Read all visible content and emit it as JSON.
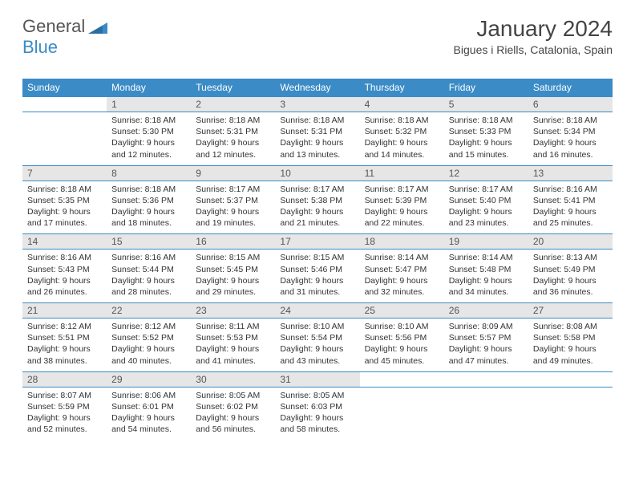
{
  "logo": {
    "text1": "General",
    "text2": "Blue"
  },
  "title": "January 2024",
  "subtitle": "Bigues i Riells, Catalonia, Spain",
  "colors": {
    "header_bg": "#3b8bc6",
    "header_fg": "#ffffff",
    "daynum_bg": "#e6e6e6",
    "rule": "#3b8bc6",
    "text": "#333333"
  },
  "weekdays": [
    "Sunday",
    "Monday",
    "Tuesday",
    "Wednesday",
    "Thursday",
    "Friday",
    "Saturday"
  ],
  "layout": {
    "rows": 5,
    "cols": 7,
    "start_col": 1,
    "last_day": 31
  },
  "days": {
    "1": {
      "sunrise": "8:18 AM",
      "sunset": "5:30 PM",
      "daylight": "9 hours and 12 minutes."
    },
    "2": {
      "sunrise": "8:18 AM",
      "sunset": "5:31 PM",
      "daylight": "9 hours and 12 minutes."
    },
    "3": {
      "sunrise": "8:18 AM",
      "sunset": "5:31 PM",
      "daylight": "9 hours and 13 minutes."
    },
    "4": {
      "sunrise": "8:18 AM",
      "sunset": "5:32 PM",
      "daylight": "9 hours and 14 minutes."
    },
    "5": {
      "sunrise": "8:18 AM",
      "sunset": "5:33 PM",
      "daylight": "9 hours and 15 minutes."
    },
    "6": {
      "sunrise": "8:18 AM",
      "sunset": "5:34 PM",
      "daylight": "9 hours and 16 minutes."
    },
    "7": {
      "sunrise": "8:18 AM",
      "sunset": "5:35 PM",
      "daylight": "9 hours and 17 minutes."
    },
    "8": {
      "sunrise": "8:18 AM",
      "sunset": "5:36 PM",
      "daylight": "9 hours and 18 minutes."
    },
    "9": {
      "sunrise": "8:17 AM",
      "sunset": "5:37 PM",
      "daylight": "9 hours and 19 minutes."
    },
    "10": {
      "sunrise": "8:17 AM",
      "sunset": "5:38 PM",
      "daylight": "9 hours and 21 minutes."
    },
    "11": {
      "sunrise": "8:17 AM",
      "sunset": "5:39 PM",
      "daylight": "9 hours and 22 minutes."
    },
    "12": {
      "sunrise": "8:17 AM",
      "sunset": "5:40 PM",
      "daylight": "9 hours and 23 minutes."
    },
    "13": {
      "sunrise": "8:16 AM",
      "sunset": "5:41 PM",
      "daylight": "9 hours and 25 minutes."
    },
    "14": {
      "sunrise": "8:16 AM",
      "sunset": "5:43 PM",
      "daylight": "9 hours and 26 minutes."
    },
    "15": {
      "sunrise": "8:16 AM",
      "sunset": "5:44 PM",
      "daylight": "9 hours and 28 minutes."
    },
    "16": {
      "sunrise": "8:15 AM",
      "sunset": "5:45 PM",
      "daylight": "9 hours and 29 minutes."
    },
    "17": {
      "sunrise": "8:15 AM",
      "sunset": "5:46 PM",
      "daylight": "9 hours and 31 minutes."
    },
    "18": {
      "sunrise": "8:14 AM",
      "sunset": "5:47 PM",
      "daylight": "9 hours and 32 minutes."
    },
    "19": {
      "sunrise": "8:14 AM",
      "sunset": "5:48 PM",
      "daylight": "9 hours and 34 minutes."
    },
    "20": {
      "sunrise": "8:13 AM",
      "sunset": "5:49 PM",
      "daylight": "9 hours and 36 minutes."
    },
    "21": {
      "sunrise": "8:12 AM",
      "sunset": "5:51 PM",
      "daylight": "9 hours and 38 minutes."
    },
    "22": {
      "sunrise": "8:12 AM",
      "sunset": "5:52 PM",
      "daylight": "9 hours and 40 minutes."
    },
    "23": {
      "sunrise": "8:11 AM",
      "sunset": "5:53 PM",
      "daylight": "9 hours and 41 minutes."
    },
    "24": {
      "sunrise": "8:10 AM",
      "sunset": "5:54 PM",
      "daylight": "9 hours and 43 minutes."
    },
    "25": {
      "sunrise": "8:10 AM",
      "sunset": "5:56 PM",
      "daylight": "9 hours and 45 minutes."
    },
    "26": {
      "sunrise": "8:09 AM",
      "sunset": "5:57 PM",
      "daylight": "9 hours and 47 minutes."
    },
    "27": {
      "sunrise": "8:08 AM",
      "sunset": "5:58 PM",
      "daylight": "9 hours and 49 minutes."
    },
    "28": {
      "sunrise": "8:07 AM",
      "sunset": "5:59 PM",
      "daylight": "9 hours and 52 minutes."
    },
    "29": {
      "sunrise": "8:06 AM",
      "sunset": "6:01 PM",
      "daylight": "9 hours and 54 minutes."
    },
    "30": {
      "sunrise": "8:05 AM",
      "sunset": "6:02 PM",
      "daylight": "9 hours and 56 minutes."
    },
    "31": {
      "sunrise": "8:05 AM",
      "sunset": "6:03 PM",
      "daylight": "9 hours and 58 minutes."
    }
  },
  "labels": {
    "sunrise": "Sunrise:",
    "sunset": "Sunset:",
    "daylight": "Daylight:"
  }
}
